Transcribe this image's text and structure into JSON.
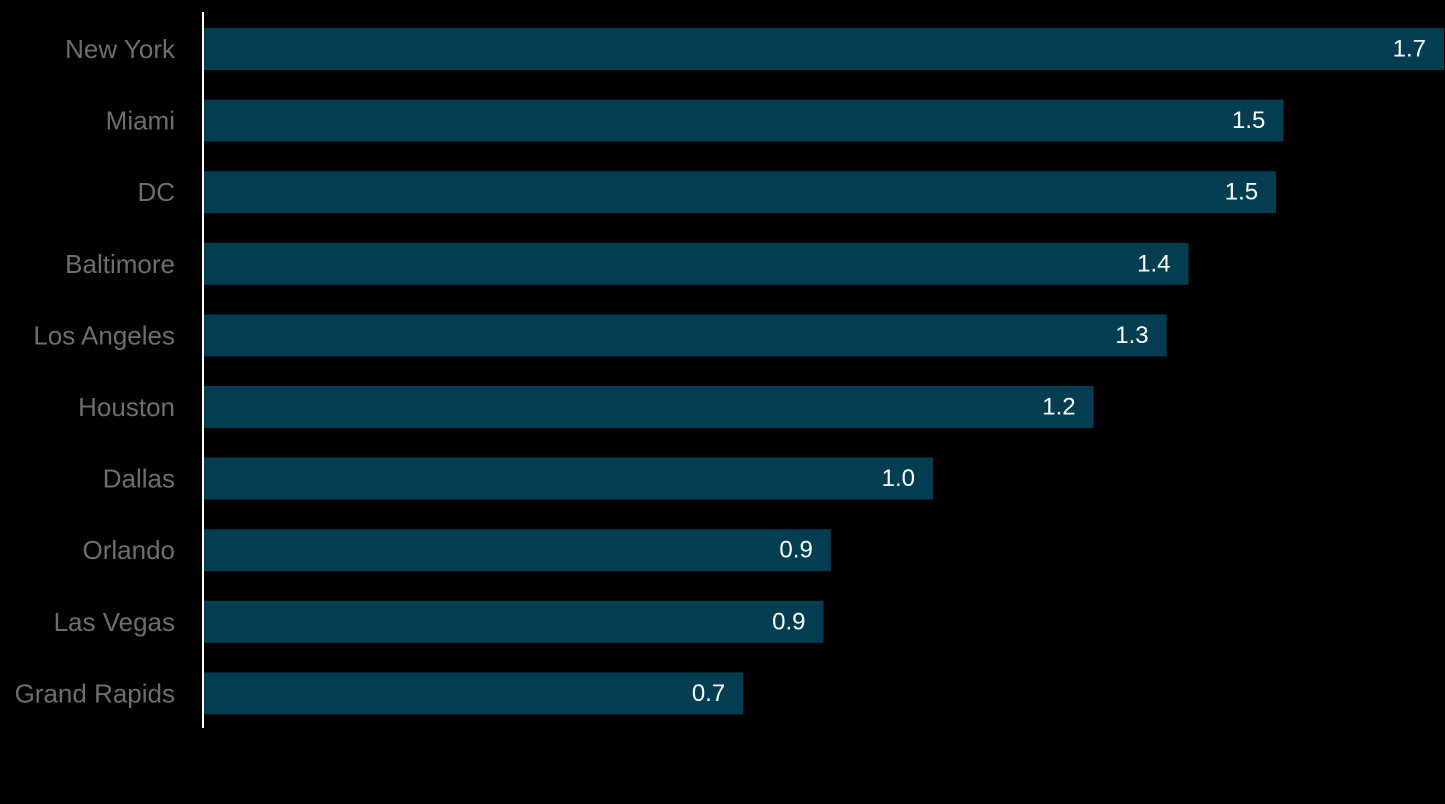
{
  "chart_data": {
    "type": "bar",
    "orientation": "horizontal",
    "categories": [
      "New York",
      "Miami",
      "DC",
      "Baltimore",
      "Los Angeles",
      "Houston",
      "Dallas",
      "Orlando",
      "Las Vegas",
      "Grand Rapids"
    ],
    "values": [
      1.7,
      1.48,
      1.47,
      1.35,
      1.32,
      1.22,
      1.0,
      0.86,
      0.85,
      0.74
    ],
    "value_labels": [
      "1.7",
      "1.5",
      "1.5",
      "1.4",
      "1.3",
      "1.2",
      "1.0",
      "0.9",
      "0.9",
      "0.7"
    ],
    "xlim": [
      0,
      1.7
    ],
    "grid": false,
    "legend": "none",
    "title": "",
    "xlabel": "",
    "ylabel": ""
  },
  "colors": {
    "background": "#000000",
    "bar": "#023d52",
    "axis": "#ffffff",
    "category_label": "#6e6e6e",
    "value_label": "#ffffff"
  }
}
